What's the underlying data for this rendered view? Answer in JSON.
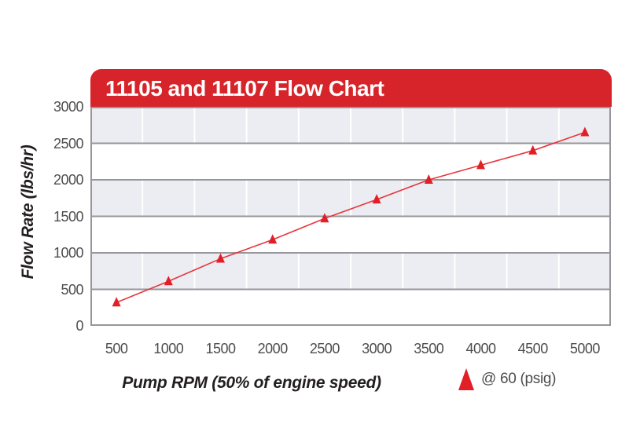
{
  "chart_data": {
    "type": "line",
    "title": "11105 and 11107 Flow Chart",
    "xlabel": "Pump RPM (50% of engine speed)",
    "ylabel": "Flow Rate (lbs/hr)",
    "categories": [
      "500",
      "1000",
      "1500",
      "2000",
      "2500",
      "3000",
      "3500",
      "4000",
      "4500",
      "5000"
    ],
    "series": [
      {
        "name": "@ 60 (psig)",
        "values": [
          320,
          610,
          920,
          1180,
          1470,
          1730,
          2000,
          2200,
          2400,
          2650
        ]
      }
    ],
    "ylim": [
      0,
      3000
    ],
    "yticks": [
      0,
      500,
      1000,
      1500,
      2000,
      2500,
      3000
    ],
    "legend_position": "bottom-right",
    "grid": "horizontal gray gridlines every 500; alternating gray/white horizontal bands; white vertical category separators",
    "marker": "triangle-up",
    "colors": {
      "banner_red": "#d7232a",
      "marker": "#e21f26",
      "line": "#e8353c",
      "band_gray": "#ecedf2",
      "gridline": "#97979b",
      "tick_text": "#4d4d4f",
      "title_text": "#ffffff",
      "axis_title_text": "#231f20"
    }
  }
}
